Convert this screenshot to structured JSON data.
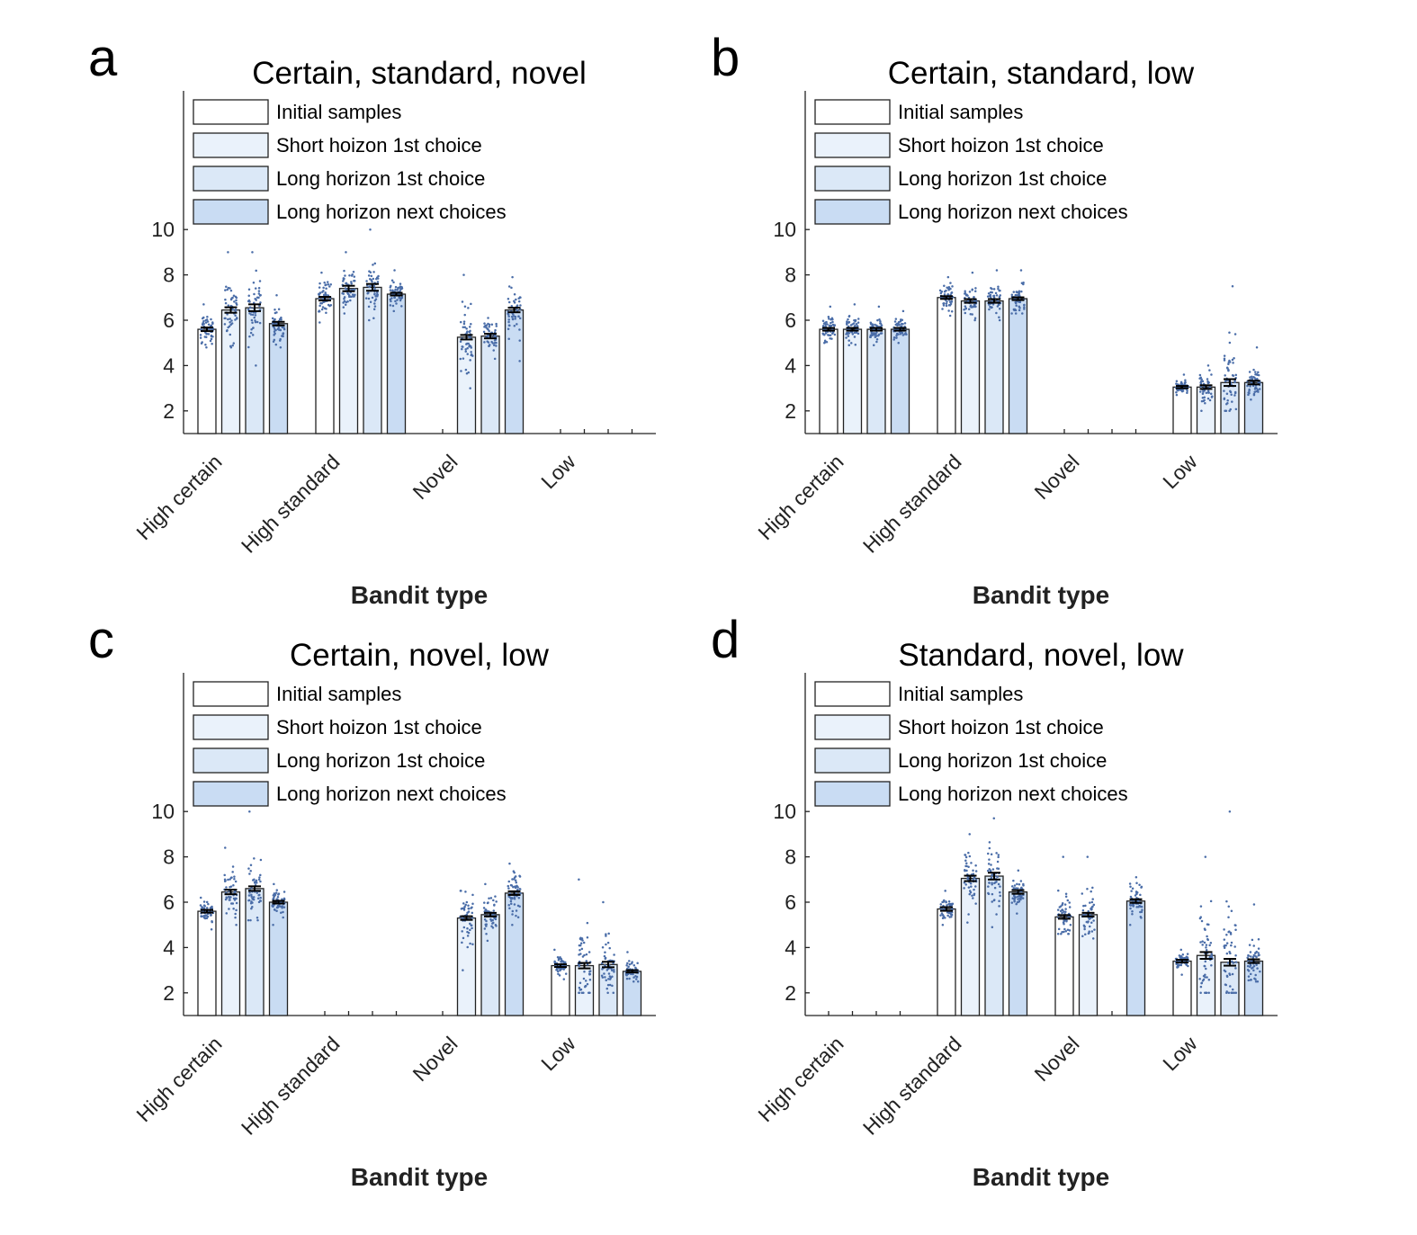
{
  "figure": {
    "xlabel": "Bandit type",
    "categories": [
      "High certain",
      "High standard",
      "Novel",
      "Low"
    ],
    "legend": [
      "Initial samples",
      "Short hoizon 1st choice",
      "Long horizon 1st choice",
      "Long horizon next choices"
    ],
    "series_colors": [
      "#ffffff",
      "#eaf2fb",
      "#dbe8f7",
      "#c9dcf3"
    ],
    "dot_color": "#4a6da8"
  },
  "chart_data": [
    {
      "type": "bar",
      "panel": "a",
      "title": "Certain, standard, novel",
      "xlabel": "Bandit type",
      "categories": [
        "High certain",
        "High standard",
        "Novel",
        "Low"
      ],
      "ylim": [
        1,
        11
      ],
      "yticks": [
        2,
        4,
        6,
        8,
        10
      ],
      "legend_position": "top-left",
      "series": [
        {
          "name": "Initial samples",
          "values": [
            5.6,
            6.95,
            null,
            null
          ],
          "err": [
            0.08,
            0.08,
            null,
            null
          ],
          "dot_range": [
            [
              4.8,
              6.7
            ],
            [
              5.9,
              8.1
            ],
            null,
            null
          ]
        },
        {
          "name": "Short hoizon 1st choice",
          "values": [
            6.45,
            7.4,
            5.25,
            null
          ],
          "err": [
            0.12,
            0.12,
            0.1,
            null
          ],
          "dot_range": [
            [
              4.8,
              9.0
            ],
            [
              6.3,
              9.0
            ],
            [
              3.0,
              8.0
            ],
            null
          ]
        },
        {
          "name": "Long horizon 1st choice",
          "values": [
            6.55,
            7.45,
            5.3,
            null
          ],
          "err": [
            0.15,
            0.15,
            0.1,
            null
          ],
          "dot_range": [
            [
              4.0,
              9.0
            ],
            [
              6.0,
              10.0
            ],
            [
              4.3,
              6.1
            ],
            null
          ]
        },
        {
          "name": "Long horizon next choices",
          "values": [
            5.85,
            7.15,
            6.45,
            null
          ],
          "err": [
            0.08,
            0.06,
            0.1,
            null
          ],
          "dot_range": [
            [
              4.8,
              7.1
            ],
            [
              6.4,
              8.2
            ],
            [
              4.2,
              7.9
            ],
            null
          ]
        }
      ]
    },
    {
      "type": "bar",
      "panel": "b",
      "title": "Certain, standard, low",
      "xlabel": "Bandit type",
      "categories": [
        "High certain",
        "High standard",
        "Novel",
        "Low"
      ],
      "ylim": [
        1,
        11
      ],
      "yticks": [
        2,
        4,
        6,
        8,
        10
      ],
      "legend_position": "top-left",
      "series": [
        {
          "name": "Initial samples",
          "values": [
            5.6,
            7.0,
            null,
            3.05
          ],
          "err": [
            0.06,
            0.06,
            null,
            0.05
          ],
          "dot_range": [
            [
              5.0,
              6.6
            ],
            [
              6.2,
              7.9
            ],
            null,
            [
              2.7,
              3.6
            ]
          ]
        },
        {
          "name": "Short hoizon 1st choice",
          "values": [
            5.6,
            6.85,
            null,
            3.05
          ],
          "err": [
            0.06,
            0.08,
            null,
            0.08
          ],
          "dot_range": [
            [
              4.9,
              6.7
            ],
            [
              6.0,
              8.1
            ],
            null,
            [
              2.0,
              4.0
            ]
          ]
        },
        {
          "name": "Long horizon 1st choice",
          "values": [
            5.6,
            6.85,
            null,
            3.25
          ],
          "err": [
            0.06,
            0.08,
            null,
            0.15
          ],
          "dot_range": [
            [
              4.9,
              6.6
            ],
            [
              6.0,
              8.2
            ],
            null,
            [
              2.0,
              7.5
            ]
          ]
        },
        {
          "name": "Long horizon next choices",
          "values": [
            5.6,
            6.95,
            null,
            3.25
          ],
          "err": [
            0.06,
            0.06,
            null,
            0.08
          ],
          "dot_range": [
            [
              5.0,
              6.4
            ],
            [
              6.3,
              8.2
            ],
            null,
            [
              2.5,
              4.8
            ]
          ]
        }
      ]
    },
    {
      "type": "bar",
      "panel": "c",
      "title": "Certain, novel, low",
      "xlabel": "Bandit type",
      "categories": [
        "High certain",
        "High standard",
        "Novel",
        "Low"
      ],
      "ylim": [
        1,
        11
      ],
      "yticks": [
        2,
        4,
        6,
        8,
        10
      ],
      "legend_position": "top-left",
      "series": [
        {
          "name": "Initial samples",
          "values": [
            5.6,
            null,
            null,
            3.2
          ],
          "err": [
            0.06,
            null,
            null,
            0.06
          ],
          "dot_range": [
            [
              4.8,
              6.2
            ],
            null,
            null,
            [
              2.6,
              3.9
            ]
          ]
        },
        {
          "name": "Short hoizon 1st choice",
          "values": [
            6.45,
            null,
            5.3,
            3.2
          ],
          "err": [
            0.1,
            null,
            0.08,
            0.12
          ],
          "dot_range": [
            [
              5.0,
              8.4
            ],
            null,
            [
              3.0,
              6.5
            ],
            [
              2.0,
              7.0
            ]
          ]
        },
        {
          "name": "Long horizon 1st choice",
          "values": [
            6.6,
            null,
            5.45,
            3.25
          ],
          "err": [
            0.1,
            null,
            0.08,
            0.12
          ],
          "dot_range": [
            [
              5.2,
              10.0
            ],
            null,
            [
              4.3,
              6.8
            ],
            [
              2.0,
              6.0
            ]
          ]
        },
        {
          "name": "Long horizon next choices",
          "values": [
            6.0,
            null,
            6.4,
            2.95
          ],
          "err": [
            0.06,
            null,
            0.08,
            0.05
          ],
          "dot_range": [
            [
              5.0,
              6.8
            ],
            null,
            [
              5.0,
              7.7
            ],
            [
              2.5,
              3.8
            ]
          ]
        }
      ]
    },
    {
      "type": "bar",
      "panel": "d",
      "title": "Standard, novel, low",
      "xlabel": "Bandit type",
      "categories": [
        "High certain",
        "High standard",
        "Novel",
        "Low"
      ],
      "ylim": [
        1,
        11
      ],
      "yticks": [
        2,
        4,
        6,
        8,
        10
      ],
      "legend_position": "top-left",
      "series": [
        {
          "name": "Initial samples",
          "values": [
            null,
            5.7,
            5.35,
            3.4
          ],
          "err": [
            null,
            0.08,
            0.08,
            0.06
          ],
          "dot_range": [
            null,
            [
              5.0,
              6.5
            ],
            [
              4.6,
              8.0
            ],
            [
              2.8,
              3.9
            ]
          ]
        },
        {
          "name": "Short hoizon 1st choice",
          "values": [
            null,
            7.05,
            5.45,
            3.65
          ],
          "err": [
            null,
            0.12,
            0.08,
            0.15
          ],
          "dot_range": [
            null,
            [
              5.1,
              9.0
            ],
            [
              4.4,
              8.0
            ],
            [
              2.0,
              8.0
            ]
          ]
        },
        {
          "name": "Long horizon 1st choice",
          "values": [
            null,
            7.15,
            null,
            3.35
          ],
          "err": [
            null,
            0.15,
            null,
            0.15
          ],
          "dot_range": [
            null,
            [
              4.9,
              9.7
            ],
            null,
            [
              2.0,
              10.0
            ]
          ]
        },
        {
          "name": "Long horizon next choices",
          "values": [
            null,
            6.45,
            6.05,
            3.4
          ],
          "err": [
            null,
            0.08,
            0.08,
            0.08
          ],
          "dot_range": [
            null,
            [
              5.5,
              7.4
            ],
            [
              5.0,
              7.1
            ],
            [
              2.5,
              5.9
            ]
          ]
        }
      ]
    }
  ]
}
